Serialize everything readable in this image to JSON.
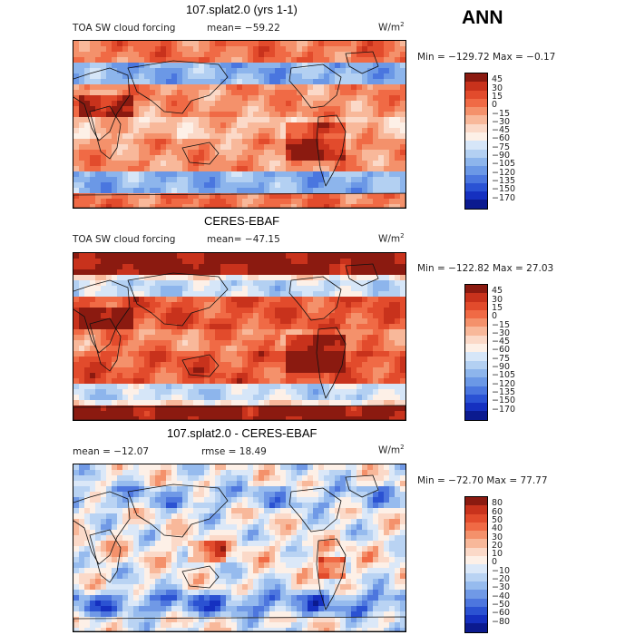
{
  "season": "ANN",
  "panels": [
    {
      "title": "107.splat2.0 (yrs 1-1)",
      "variable": "TOA SW cloud forcing",
      "mean_text": "mean= −59.22",
      "units_base": "W/m",
      "units_exp": "2",
      "minmax": "Min = −129.72 Max =  −0.17",
      "levels": [
        "45",
        "30",
        "15",
        "0",
        "−15",
        "−30",
        "−45",
        "−60",
        "−75",
        "−90",
        "−105",
        "−120",
        "−135",
        "−150",
        "−170"
      ],
      "colors": [
        "#8b1a10",
        "#c8321c",
        "#e24b2c",
        "#f06a45",
        "#f4916b",
        "#f8b89a",
        "#fbd9c8",
        "#fdf0e7",
        "#d6e6f8",
        "#b3d0f2",
        "#8db5ec",
        "#6b98e6",
        "#4a76df",
        "#2a52d4",
        "#1530c0",
        "#0b1a8f"
      ],
      "type": "model"
    },
    {
      "title": "CERES-EBAF",
      "variable": "TOA SW cloud forcing",
      "mean_text": "mean= −47.15",
      "units_base": "W/m",
      "units_exp": "2",
      "minmax": "Min = −122.82 Max =  27.03",
      "levels": [
        "45",
        "30",
        "15",
        "0",
        "−15",
        "−30",
        "−45",
        "−60",
        "−75",
        "−90",
        "−105",
        "−120",
        "−135",
        "−150",
        "−170"
      ],
      "colors": [
        "#8b1a10",
        "#c8321c",
        "#e24b2c",
        "#f06a45",
        "#f4916b",
        "#f8b89a",
        "#fbd9c8",
        "#fdf0e7",
        "#d6e6f8",
        "#b3d0f2",
        "#8db5ec",
        "#6b98e6",
        "#4a76df",
        "#2a52d4",
        "#1530c0",
        "#0b1a8f"
      ],
      "type": "obs"
    },
    {
      "title": "107.splat2.0 - CERES-EBAF",
      "variable": "",
      "mean_text": "mean = −12.07",
      "rmse_text": "rmse =  18.49",
      "units_base": "W/m",
      "units_exp": "2",
      "minmax": "Min = −72.70 Max =  77.77",
      "levels": [
        "80",
        "60",
        "50",
        "40",
        "30",
        "20",
        "10",
        "0",
        "−10",
        "−20",
        "−30",
        "−40",
        "−50",
        "−60",
        "−80"
      ],
      "colors": [
        "#8b1a10",
        "#c8321c",
        "#e24b2c",
        "#f06a45",
        "#f4916b",
        "#f8b89a",
        "#fbd9c8",
        "#fdf0e7",
        "#dbe8f8",
        "#b9d3f3",
        "#96bbee",
        "#7099e6",
        "#4d76de",
        "#2b52d2",
        "#1530c0",
        "#0b1a8f"
      ],
      "type": "diff"
    }
  ]
}
